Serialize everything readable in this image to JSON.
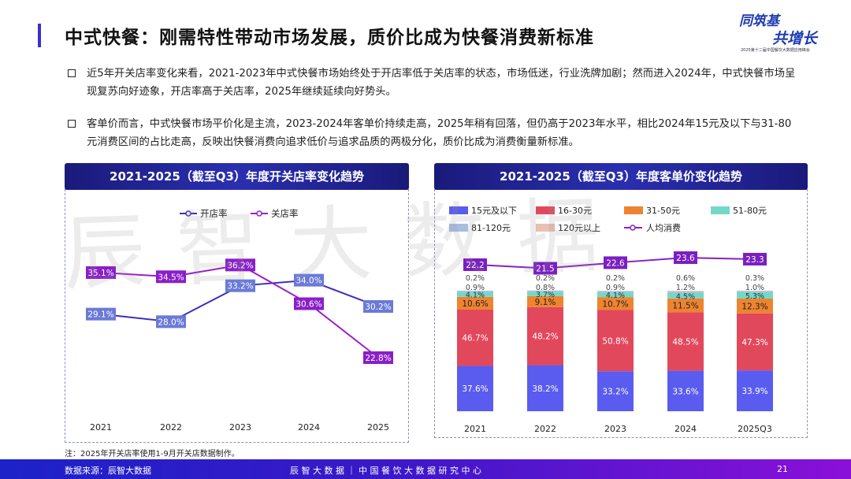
{
  "header": {
    "title": "中式快餐：刚需特性带动市场发展，质价比成为快餐消费新标准",
    "logo": [
      "同筑基",
      "共增长",
      "2025第十二届中国餐饮大数据应用峰会"
    ]
  },
  "bullets": [
    "近5年开关店率变化来看，2021-2023年中式快餐市场始终处于开店率低于关店率的状态，市场低迷，行业洗牌加剧；然而进入2024年，中式快餐市场呈现复苏向好迹象，开店率高于关店率，2025年继续延续向好势头。",
    "客单价而言，中式快餐市场平价化是主流，2023-2024年客单价持续走高，2025年稍有回落，但仍高于2023年水平，相比2024年15元及以下与31-80元消费区间的占比走高，反映出快餐消费向追求低价与追求品质的两极分化，质价比成为消费衡量新标准。"
  ],
  "watermark": "辰智大数据",
  "chart_data": [
    {
      "type": "line",
      "title": "2021-2025（截至Q3）年度开关店率变化趋势",
      "categories": [
        "2021",
        "2022",
        "2023",
        "2024",
        "2025"
      ],
      "legend_position": "top",
      "grid": false,
      "series": [
        {
          "name": "开店率",
          "color": "#3b2fc0",
          "values": [
            29.1,
            28.0,
            33.2,
            34.0,
            30.2
          ]
        },
        {
          "name": "关店率",
          "color": "#9a1fc8",
          "values": [
            35.1,
            34.5,
            36.2,
            30.6,
            22.8
          ]
        }
      ]
    },
    {
      "type": "bar",
      "stacked": true,
      "title": "2021-2025（截至Q3）年度客单价变化趋势",
      "categories": [
        "2021",
        "2022",
        "2023",
        "2024",
        "2025Q3"
      ],
      "legend_position": "top",
      "grid": false,
      "series": [
        {
          "name": "15元及以下",
          "color": "#5a5cf0",
          "values": [
            37.6,
            38.2,
            33.2,
            33.6,
            33.9
          ]
        },
        {
          "name": "16-30元",
          "color": "#e2485c",
          "values": [
            46.7,
            48.2,
            50.8,
            48.5,
            47.3
          ]
        },
        {
          "name": "31-50元",
          "color": "#ee8430",
          "values": [
            10.6,
            9.1,
            10.7,
            11.5,
            12.3
          ]
        },
        {
          "name": "51-80元",
          "color": "#74d8c8",
          "values": [
            4.1,
            3.7,
            4.1,
            4.5,
            5.3
          ]
        },
        {
          "name": "81-120元",
          "color": "#a8bde2",
          "values": [
            0.9,
            0.8,
            0.9,
            1.2,
            1.0
          ]
        },
        {
          "name": "120元以上",
          "color": "#e8c0b4",
          "values": [
            0.2,
            0.2,
            0.2,
            0.6,
            0.3
          ]
        }
      ],
      "line": {
        "name": "人均消费",
        "color": "#8a1fc4",
        "values": [
          22.2,
          21.5,
          22.6,
          23.6,
          23.3
        ]
      }
    }
  ],
  "note": "注：2025年开关店率使用1-9月开关店数据制作。",
  "footer": {
    "source": "数据来源：辰智大数据",
    "center": "辰 智 大 数 据 ｜ 中 国 餐 饮 大 数 据 研 究 中 心",
    "page": "21"
  }
}
